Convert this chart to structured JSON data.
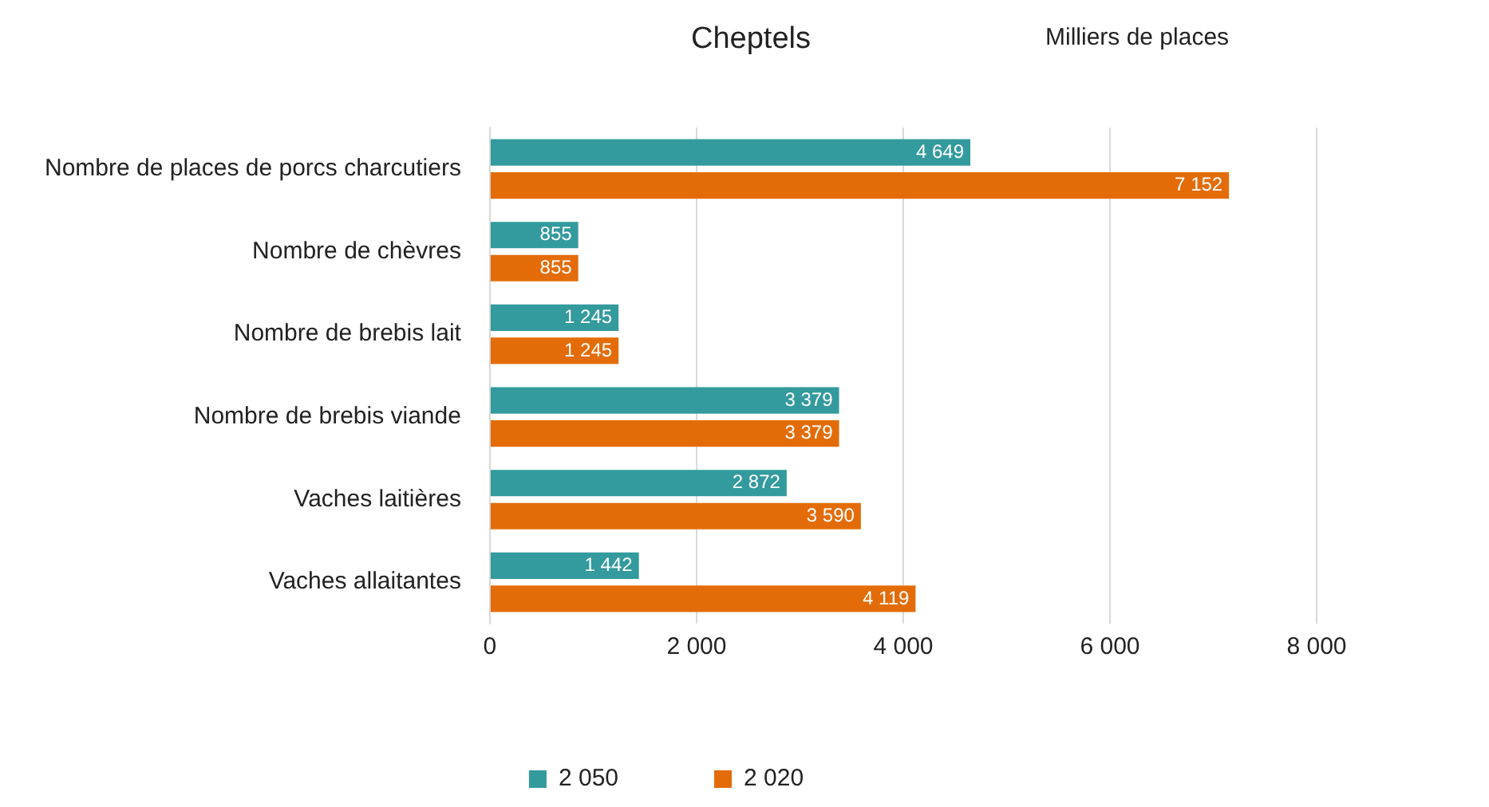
{
  "chart_data": {
    "type": "bar",
    "orientation": "horizontal",
    "title": "Cheptels",
    "subtitle": "Milliers de places",
    "categories": [
      "Nombre de places de porcs charcutiers",
      "Nombre de chèvres",
      "Nombre de brebis lait",
      "Nombre de brebis viande",
      "Vaches laitières",
      "Vaches allaitantes"
    ],
    "series": [
      {
        "name": "2 050",
        "color": "#339a9e",
        "values": [
          4649,
          855,
          1245,
          3379,
          2872,
          1442
        ],
        "value_labels": [
          "4 649",
          "855",
          "1 245",
          "3 379",
          "2 872",
          "1 442"
        ]
      },
      {
        "name": "2 020",
        "color": "#e36c09",
        "values": [
          7152,
          855,
          1245,
          3379,
          3590,
          4119
        ],
        "value_labels": [
          "7 152",
          "855",
          "1 245",
          "3 379",
          "3 590",
          "4 119"
        ]
      }
    ],
    "xlim": [
      0,
      8000
    ],
    "xticks": [
      0,
      {
        "value": 2000,
        "label": "2 000"
      },
      {
        "value": 4000,
        "label": "4 000"
      },
      {
        "value": 6000,
        "label": "6 000"
      },
      {
        "value": 8000,
        "label": "8 000"
      }
    ],
    "grid": "x",
    "legend": "bottom"
  }
}
